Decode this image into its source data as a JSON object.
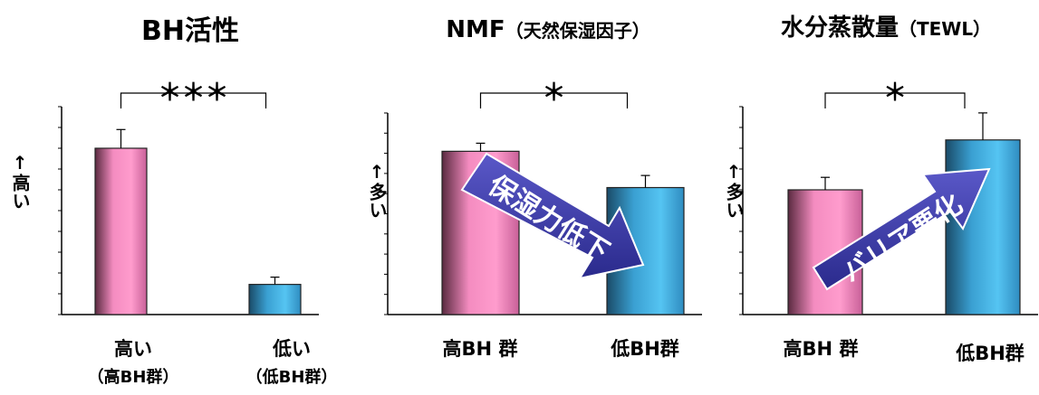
{
  "chart_data": [
    {
      "type": "bar",
      "title": "BH活性",
      "title_sub": "",
      "ylabel": "↑高い",
      "categories": [
        {
          "main": "高い",
          "sub": "（高BH群）"
        },
        {
          "main": "低い",
          "sub": "（低BH群）"
        }
      ],
      "values": [
        80,
        14.5
      ],
      "errors": [
        9,
        3.5
      ],
      "ylim": [
        0,
        100
      ],
      "significance": "＊＊＊",
      "colors": [
        "#f48cc0",
        "#50bfee"
      ]
    },
    {
      "type": "bar",
      "title": "NMF",
      "title_sub": "（天然保湿因子）",
      "ylabel": "↑多い",
      "categories": [
        {
          "main": "高BH 群",
          "sub": ""
        },
        {
          "main": "低BH群",
          "sub": ""
        }
      ],
      "values": [
        81,
        63
      ],
      "errors": [
        4,
        6
      ],
      "ylim": [
        0,
        100
      ],
      "significance": "＊",
      "colors": [
        "#f48cc0",
        "#50bfee"
      ],
      "arrow": {
        "text": "保湿力低下",
        "direction": "down"
      }
    },
    {
      "type": "bar",
      "title": "水分蒸散量",
      "title_sub": "（TEWL）",
      "ylabel": "↑多い",
      "categories": [
        {
          "main": "高BH 群",
          "sub": ""
        },
        {
          "main": "低BH群",
          "sub": ""
        }
      ],
      "values": [
        60,
        84
      ],
      "errors": [
        6,
        13
      ],
      "ylim": [
        0,
        100
      ],
      "significance": "＊",
      "colors": [
        "#f48cc0",
        "#50bfee"
      ],
      "arrow": {
        "text": "バリア悪化",
        "direction": "up"
      }
    }
  ]
}
